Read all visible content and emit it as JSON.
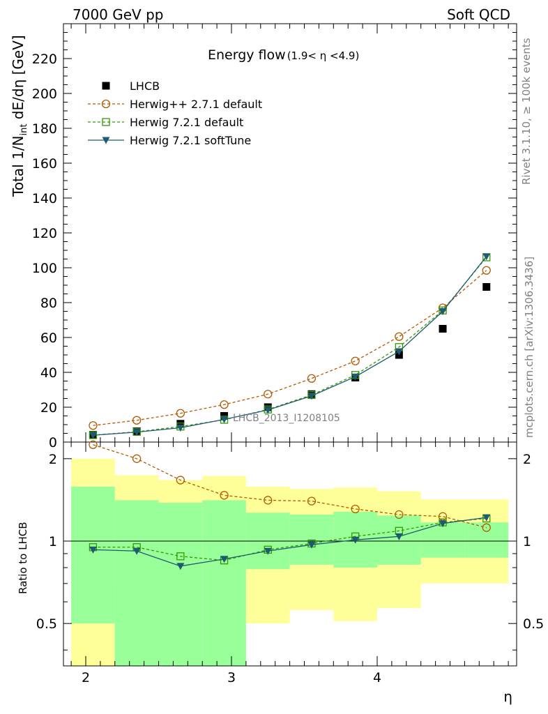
{
  "header": {
    "left": "7000 GeV pp",
    "right": "Soft QCD"
  },
  "side_labels": {
    "rivet": "Rivet 3.1.10, ≥ 100k events",
    "mcplots": "mcplots.cern.ch [arXiv:1306.3436]"
  },
  "colors": {
    "herwigpp": "#b35900",
    "herwig721": "#339a00",
    "softtune": "#1f5a73",
    "band_yellow": "#ffff99",
    "band_green": "#99ff99"
  },
  "chart_data": [
    {
      "type": "scatter",
      "title": "Energy flow",
      "subtitle": "(1.9< η <4.9)",
      "ylabel": "Total 1/N",
      "ylabel_sub": "int",
      "ylabel_tail": " dE/dη [GeV]",
      "annotation": "LHCB_2013_I1208105",
      "xlim": [
        1.9,
        4.9
      ],
      "ylim": [
        0,
        240
      ],
      "x_ticks": [
        2,
        3,
        4
      ],
      "y_ticks": [
        0,
        20,
        40,
        60,
        80,
        100,
        120,
        140,
        160,
        180,
        200,
        220
      ],
      "x": [
        2.05,
        2.35,
        2.65,
        2.95,
        3.25,
        3.55,
        3.85,
        4.15,
        4.45,
        4.75
      ],
      "legend": {
        "placement": "top-left",
        "entries": [
          "LHCB",
          "Herwig++ 2.7.1 default",
          "Herwig 7.2.1 default",
          "Herwig 7.2.1 softTune"
        ]
      },
      "series": [
        {
          "name": "LHCB",
          "values": [
            4.2,
            6.2,
            10.5,
            15.0,
            20.0,
            27.5,
            37.0,
            50.0,
            65.0,
            89.0
          ]
        },
        {
          "name": "Herwig++ 2.7.1 default",
          "values": [
            9.5,
            12.5,
            16.5,
            21.5,
            27.5,
            36.5,
            46.5,
            60.5,
            77.0,
            98.5
          ]
        },
        {
          "name": "Herwig 7.2.1 default",
          "values": [
            4.0,
            5.9,
            8.9,
            12.8,
            18.7,
            27.0,
            38.5,
            54.5,
            75.5,
            106.0
          ]
        },
        {
          "name": "Herwig 7.2.1 softTune",
          "values": [
            3.9,
            5.7,
            8.2,
            13.0,
            18.4,
            26.5,
            37.5,
            52.0,
            75.0,
            106.5
          ]
        }
      ]
    },
    {
      "type": "line",
      "ylabel": "Ratio to LHCB",
      "xlabel": "η",
      "scale": "log",
      "ylim": [
        0.35,
        2.3
      ],
      "y_ticks": [
        0.5,
        1,
        2
      ],
      "x_ticks": [
        2,
        3,
        4
      ],
      "bins": [
        {
          "lo": 1.9,
          "hi": 2.2,
          "y_lo": 0.35,
          "y_hi": 2.0,
          "g_lo": 0.5,
          "g_hi": 1.58
        },
        {
          "lo": 2.2,
          "hi": 2.5,
          "y_lo": 0.7,
          "y_hi": 1.74,
          "g_lo": 0.35,
          "g_hi": 1.41
        },
        {
          "lo": 2.5,
          "hi": 2.8,
          "y_lo": 0.74,
          "y_hi": 1.67,
          "g_lo": 0.35,
          "g_hi": 1.38
        },
        {
          "lo": 2.8,
          "hi": 3.1,
          "y_lo": 0.7,
          "y_hi": 1.73,
          "g_lo": 0.35,
          "g_hi": 1.41
        },
        {
          "lo": 3.1,
          "hi": 3.4,
          "y_lo": 0.5,
          "y_hi": 1.58,
          "g_lo": 0.79,
          "g_hi": 1.27
        },
        {
          "lo": 3.4,
          "hi": 3.7,
          "y_lo": 0.56,
          "y_hi": 1.55,
          "g_lo": 0.82,
          "g_hi": 1.25
        },
        {
          "lo": 3.7,
          "hi": 4.0,
          "y_lo": 0.51,
          "y_hi": 1.57,
          "g_lo": 0.8,
          "g_hi": 1.28
        },
        {
          "lo": 4.0,
          "hi": 4.3,
          "y_lo": 0.57,
          "y_hi": 1.52,
          "g_lo": 0.82,
          "g_hi": 1.24
        },
        {
          "lo": 4.3,
          "hi": 4.6,
          "y_lo": 0.7,
          "y_hi": 1.42,
          "g_lo": 0.87,
          "g_hi": 1.17
        },
        {
          "lo": 4.6,
          "hi": 4.9,
          "y_lo": 0.7,
          "y_hi": 1.42,
          "g_lo": 0.87,
          "g_hi": 1.17
        }
      ],
      "series": [
        {
          "name": "Herwig++ 2.7.1 default",
          "values": [
            2.25,
            2.0,
            1.67,
            1.47,
            1.41,
            1.4,
            1.31,
            1.25,
            1.23,
            1.12
          ]
        },
        {
          "name": "Herwig 7.2.1 default",
          "values": [
            0.95,
            0.95,
            0.88,
            0.85,
            0.93,
            0.98,
            1.04,
            1.09,
            1.17,
            1.21
          ]
        },
        {
          "name": "Herwig 7.2.1 softTune",
          "values": [
            0.93,
            0.92,
            0.81,
            0.86,
            0.92,
            0.97,
            1.01,
            1.04,
            1.16,
            1.22
          ]
        }
      ]
    }
  ]
}
